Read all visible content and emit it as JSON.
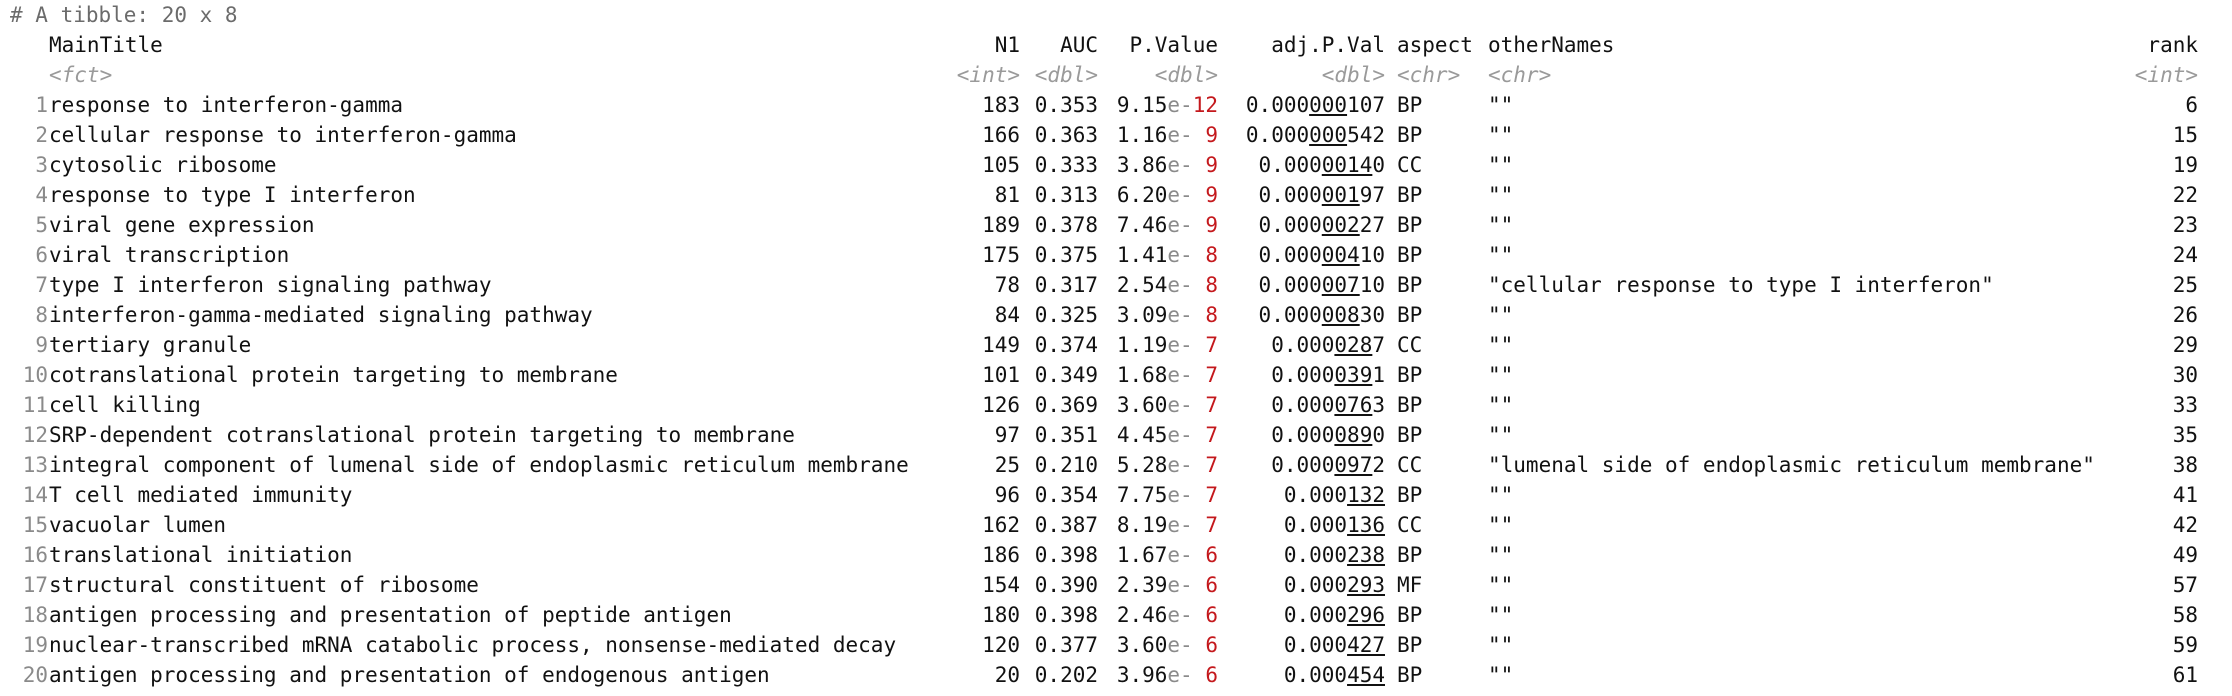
{
  "summary": "# A tibble: 20 x 8",
  "columns": [
    {
      "name": "MainTitle",
      "type": "<fct>"
    },
    {
      "name": "N1",
      "type": "<int>"
    },
    {
      "name": "AUC",
      "type": "<dbl>"
    },
    {
      "name": "P.Value",
      "type": "<dbl>"
    },
    {
      "name": "adj.P.Val",
      "type": "<dbl>"
    },
    {
      "name": "aspect",
      "type": "<chr>"
    },
    {
      "name": "otherNames",
      "type": "<chr>"
    },
    {
      "name": "rank",
      "type": "<int>"
    }
  ],
  "rows": [
    {
      "idx": "1",
      "title": "response to interferon-gamma",
      "n1": "183",
      "auc": "0.353",
      "p": {
        "mant": "9.15",
        "e": "e-",
        "exp": "12"
      },
      "adj": {
        "pre": "0.000",
        "ul": "000",
        "post": "107"
      },
      "aspect": "BP",
      "other": "\"\"",
      "rank": "6"
    },
    {
      "idx": "2",
      "title": "cellular response to interferon-gamma",
      "n1": "166",
      "auc": "0.363",
      "p": {
        "mant": "1.16",
        "e": "e-",
        "exp": " 9"
      },
      "adj": {
        "pre": "0.000",
        "ul": "000",
        "post": "542"
      },
      "aspect": "BP",
      "other": "\"\"",
      "rank": "15"
    },
    {
      "idx": "3",
      "title": "cytosolic ribosome",
      "n1": "105",
      "auc": "0.333",
      "p": {
        "mant": "3.86",
        "e": "e-",
        "exp": " 9"
      },
      "adj": {
        "pre": "0.000",
        "ul": "0014",
        "post": "0"
      },
      "aspect": "CC",
      "other": "\"\"",
      "rank": "19"
    },
    {
      "idx": "4",
      "title": "response to type I interferon",
      "n1": "81",
      "auc": "0.313",
      "p": {
        "mant": "6.20",
        "e": "e-",
        "exp": " 9"
      },
      "adj": {
        "pre": "0.000",
        "ul": "001",
        "post": "97"
      },
      "aspect": "BP",
      "other": "\"\"",
      "rank": "22"
    },
    {
      "idx": "5",
      "title": "viral gene expression",
      "n1": "189",
      "auc": "0.378",
      "p": {
        "mant": "7.46",
        "e": "e-",
        "exp": " 9"
      },
      "adj": {
        "pre": "0.000",
        "ul": "002",
        "post": "27"
      },
      "aspect": "BP",
      "other": "\"\"",
      "rank": "23"
    },
    {
      "idx": "6",
      "title": "viral transcription",
      "n1": "175",
      "auc": "0.375",
      "p": {
        "mant": "1.41",
        "e": "e-",
        "exp": " 8"
      },
      "adj": {
        "pre": "0.000",
        "ul": "004",
        "post": "10"
      },
      "aspect": "BP",
      "other": "\"\"",
      "rank": "24"
    },
    {
      "idx": "7",
      "title": "type I interferon signaling pathway",
      "n1": "78",
      "auc": "0.317",
      "p": {
        "mant": "2.54",
        "e": "e-",
        "exp": " 8"
      },
      "adj": {
        "pre": "0.000",
        "ul": "007",
        "post": "10"
      },
      "aspect": "BP",
      "other": "\"cellular response to type I interferon\"",
      "rank": "25"
    },
    {
      "idx": "8",
      "title": "interferon-gamma-mediated signaling pathway",
      "n1": "84",
      "auc": "0.325",
      "p": {
        "mant": "3.09",
        "e": "e-",
        "exp": " 8"
      },
      "adj": {
        "pre": "0.000",
        "ul": "008",
        "post": "30"
      },
      "aspect": "BP",
      "other": "\"\"",
      "rank": "26"
    },
    {
      "idx": "9",
      "title": "tertiary granule",
      "n1": "149",
      "auc": "0.374",
      "p": {
        "mant": "1.19",
        "e": "e-",
        "exp": " 7"
      },
      "adj": {
        "pre": "0.000",
        "ul": "028",
        "post": "7"
      },
      "aspect": "CC",
      "other": "\"\"",
      "rank": "29"
    },
    {
      "idx": "10",
      "title": "cotranslational protein targeting to membrane",
      "n1": "101",
      "auc": "0.349",
      "p": {
        "mant": "1.68",
        "e": "e-",
        "exp": " 7"
      },
      "adj": {
        "pre": "0.000",
        "ul": "039",
        "post": "1"
      },
      "aspect": "BP",
      "other": "\"\"",
      "rank": "30"
    },
    {
      "idx": "11",
      "title": "cell killing",
      "n1": "126",
      "auc": "0.369",
      "p": {
        "mant": "3.60",
        "e": "e-",
        "exp": " 7"
      },
      "adj": {
        "pre": "0.000",
        "ul": "076",
        "post": "3"
      },
      "aspect": "BP",
      "other": "\"\"",
      "rank": "33"
    },
    {
      "idx": "12",
      "title": "SRP-dependent cotranslational protein targeting to membrane",
      "n1": "97",
      "auc": "0.351",
      "p": {
        "mant": "4.45",
        "e": "e-",
        "exp": " 7"
      },
      "adj": {
        "pre": "0.000",
        "ul": "089",
        "post": "0"
      },
      "aspect": "BP",
      "other": "\"\"",
      "rank": "35"
    },
    {
      "idx": "13",
      "title": "integral component of lumenal side of endoplasmic reticulum membrane",
      "n1": "25",
      "auc": "0.210",
      "p": {
        "mant": "5.28",
        "e": "e-",
        "exp": " 7"
      },
      "adj": {
        "pre": "0.000",
        "ul": "097",
        "post": "2"
      },
      "aspect": "CC",
      "other": "\"lumenal side of endoplasmic reticulum membrane\"",
      "rank": "38"
    },
    {
      "idx": "14",
      "title": "T cell mediated immunity",
      "n1": "96",
      "auc": "0.354",
      "p": {
        "mant": "7.75",
        "e": "e-",
        "exp": " 7"
      },
      "adj": {
        "pre": "0.000",
        "ul": "132",
        "post": ""
      },
      "aspect": "BP",
      "other": "\"\"",
      "rank": "41"
    },
    {
      "idx": "15",
      "title": "vacuolar lumen",
      "n1": "162",
      "auc": "0.387",
      "p": {
        "mant": "8.19",
        "e": "e-",
        "exp": " 7"
      },
      "adj": {
        "pre": "0.000",
        "ul": "136",
        "post": ""
      },
      "aspect": "CC",
      "other": "\"\"",
      "rank": "42"
    },
    {
      "idx": "16",
      "title": "translational initiation",
      "n1": "186",
      "auc": "0.398",
      "p": {
        "mant": "1.67",
        "e": "e-",
        "exp": " 6"
      },
      "adj": {
        "pre": "0.000",
        "ul": "238",
        "post": ""
      },
      "aspect": "BP",
      "other": "\"\"",
      "rank": "49"
    },
    {
      "idx": "17",
      "title": "structural constituent of ribosome",
      "n1": "154",
      "auc": "0.390",
      "p": {
        "mant": "2.39",
        "e": "e-",
        "exp": " 6"
      },
      "adj": {
        "pre": "0.000",
        "ul": "293",
        "post": ""
      },
      "aspect": "MF",
      "other": "\"\"",
      "rank": "57"
    },
    {
      "idx": "18",
      "title": "antigen processing and presentation of peptide antigen",
      "n1": "180",
      "auc": "0.398",
      "p": {
        "mant": "2.46",
        "e": "e-",
        "exp": " 6"
      },
      "adj": {
        "pre": "0.000",
        "ul": "296",
        "post": ""
      },
      "aspect": "BP",
      "other": "\"\"",
      "rank": "58"
    },
    {
      "idx": "19",
      "title": "nuclear-transcribed mRNA catabolic process, nonsense-mediated decay",
      "n1": "120",
      "auc": "0.377",
      "p": {
        "mant": "3.60",
        "e": "e-",
        "exp": " 6"
      },
      "adj": {
        "pre": "0.000",
        "ul": "427",
        "post": ""
      },
      "aspect": "BP",
      "other": "\"\"",
      "rank": "59"
    },
    {
      "idx": "20",
      "title": "antigen processing and presentation of endogenous antigen",
      "n1": "20",
      "auc": "0.202",
      "p": {
        "mant": "3.96",
        "e": "e-",
        "exp": " 6"
      },
      "adj": {
        "pre": "0.000",
        "ul": "454",
        "post": ""
      },
      "aspect": "BP",
      "other": "\"\"",
      "rank": "61"
    }
  ]
}
